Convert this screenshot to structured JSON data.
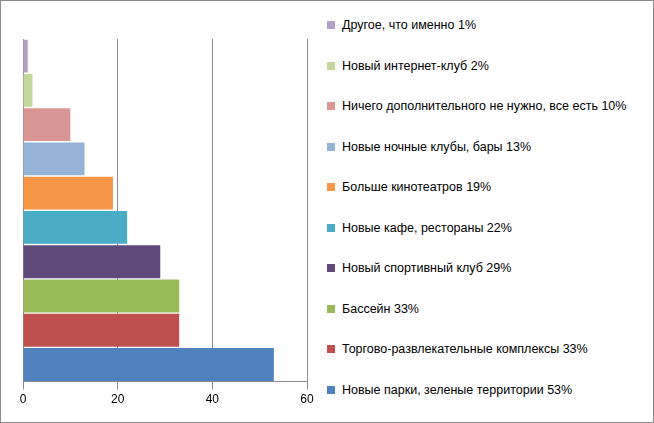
{
  "chart_data": {
    "type": "bar",
    "orientation": "horizontal",
    "categories": [
      "Другое, что именно 1%",
      "Новый интернет-клуб 2%",
      "Ничего дополнительного не нужно, все есть 10%",
      "Новые ночные клубы, бары 13%",
      "Больше кинотеатров 19%",
      "Новые кафе, рестораны 22%",
      "Новый спортивный клуб 29%",
      "Бассейн 33%",
      "Торгово-развлекательные комплексы 33%",
      "Новые парки, зеленые территории 53%"
    ],
    "values": [
      1,
      2,
      10,
      13,
      19,
      22,
      29,
      33,
      33,
      53
    ],
    "colors": [
      "#b3a2c7",
      "#c3d69b",
      "#d99694",
      "#95b3d7",
      "#f79646",
      "#4bacc6",
      "#604a7b",
      "#9bbb59",
      "#c0504d",
      "#4f81bd"
    ],
    "xlim": [
      0,
      60
    ],
    "xticks": [
      0,
      20,
      40,
      60
    ],
    "grid": true,
    "tick_labels": "x",
    "legend": "right"
  }
}
